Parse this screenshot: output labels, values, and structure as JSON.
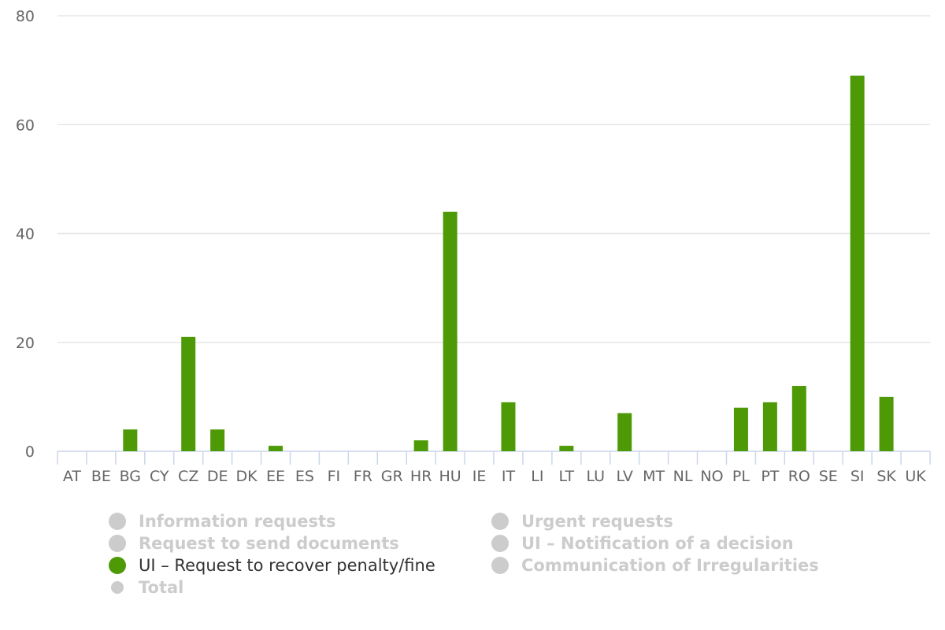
{
  "chart_data": {
    "type": "bar",
    "title": "",
    "xlabel": "",
    "ylabel": "",
    "ylim": [
      0,
      80
    ],
    "yticks": [
      "0",
      "20",
      "40",
      "60",
      "80"
    ],
    "categories": [
      "AT",
      "BE",
      "BG",
      "CY",
      "CZ",
      "DE",
      "DK",
      "EE",
      "ES",
      "FI",
      "FR",
      "GR",
      "HR",
      "HU",
      "IE",
      "IT",
      "LI",
      "LT",
      "LU",
      "LV",
      "MT",
      "NL",
      "NO",
      "PL",
      "PT",
      "RO",
      "SE",
      "SI",
      "SK",
      "UK"
    ],
    "series": [
      {
        "name": "UI – Request to recover penalty/fine",
        "color": "#4d9a06",
        "values": [
          0,
          0,
          4,
          0,
          21,
          4,
          0,
          1,
          0,
          0,
          0,
          0,
          2,
          44,
          0,
          9,
          0,
          1,
          0,
          7,
          0,
          0,
          0,
          8,
          9,
          12,
          0,
          69,
          10,
          0
        ]
      }
    ],
    "grid": true,
    "legend_position": "bottom"
  },
  "legend": [
    {
      "label": "Information requests",
      "active": false
    },
    {
      "label": "Urgent requests",
      "active": false
    },
    {
      "label": "Request to send documents",
      "active": false
    },
    {
      "label": "UI – Notification of a decision",
      "active": false
    },
    {
      "label": "UI – Request to recover penalty/fine",
      "active": true
    },
    {
      "label": "Communication of Irregularities",
      "active": false
    },
    {
      "label": "Total",
      "active": false,
      "small": true
    }
  ]
}
